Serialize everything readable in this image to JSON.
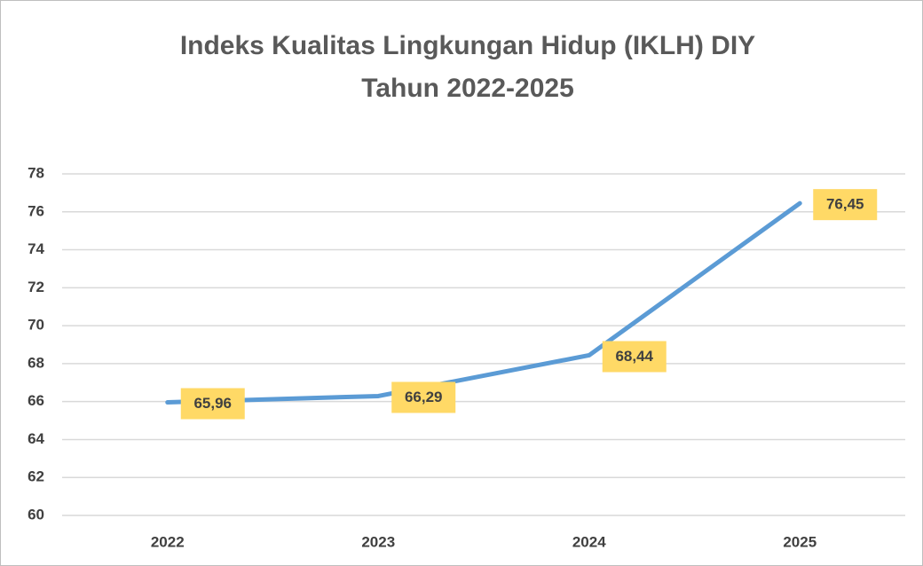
{
  "chart_data": {
    "type": "line",
    "title": "Indeks Kualitas Lingkungan Hidup (IKLH) DIY Tahun 2022-2025",
    "categories": [
      "2022",
      "2023",
      "2024",
      "2025"
    ],
    "series": [
      {
        "name": "IKLH",
        "color": "#5b9bd5",
        "values": [
          65.96,
          66.29,
          68.44,
          76.45
        ],
        "value_labels": [
          "65,96",
          "66,29",
          "68,44",
          "76,45"
        ]
      }
    ],
    "label_color": "#ffd966",
    "ylim": [
      60,
      78
    ],
    "yticks": [
      60,
      62,
      64,
      66,
      68,
      70,
      72,
      74,
      76,
      78
    ],
    "grid": true
  }
}
